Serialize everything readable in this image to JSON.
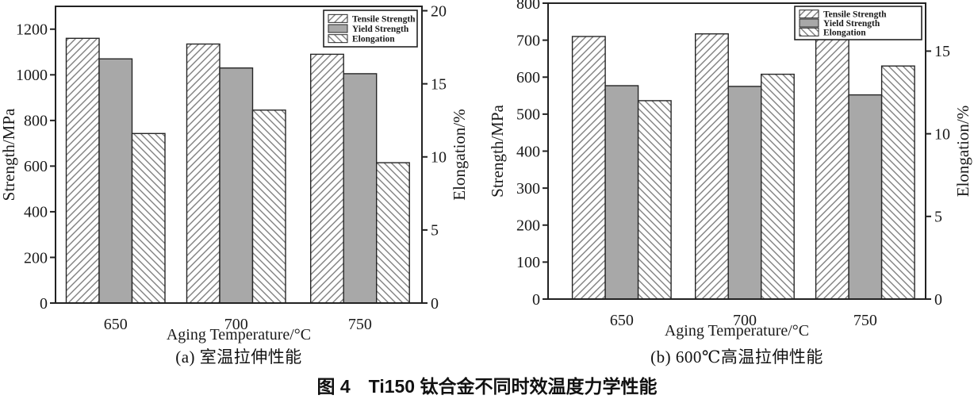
{
  "figure": {
    "caption": "图 4　Ti150 钛合金不同时效温度力学性能",
    "background": "#ffffff"
  },
  "colors": {
    "bar_gray": "#a8a8a8",
    "hatch_line": "#7f7f7f",
    "bar_outline": "#262626",
    "frame": "#222222",
    "text": "#1a1a1a"
  },
  "chart_data": [
    {
      "type": "bar",
      "panel_label": "a",
      "caption": "(a) 室温拉伸性能",
      "x_axis": {
        "label": "Aging Temperature/°C",
        "categories": [
          "650",
          "700",
          "750"
        ]
      },
      "left_axis": {
        "label": "Strength/MPa",
        "ticks": [
          0,
          200,
          400,
          600,
          800,
          1000,
          1200
        ],
        "max": 1300
      },
      "right_axis": {
        "label": "Elongation/%",
        "ticks": [
          0,
          5,
          10,
          15,
          20
        ],
        "max": 20.3
      },
      "legend": {
        "position": "top-right",
        "entries": [
          "Tensile Strength",
          "Yield Strength",
          "Elongation"
        ]
      },
      "series": [
        {
          "name": "Tensile Strength",
          "axis": "left",
          "pattern": "diagonal-forward",
          "values": [
            1160,
            1135,
            1090
          ]
        },
        {
          "name": "Yield Strength",
          "axis": "left",
          "pattern": "solid-gray",
          "values": [
            1070,
            1030,
            1005
          ]
        },
        {
          "name": "Elongation",
          "axis": "right",
          "pattern": "diagonal-backward",
          "values": [
            11.6,
            13.2,
            9.6
          ]
        }
      ]
    },
    {
      "type": "bar",
      "panel_label": "b",
      "caption": "(b) 600℃高温拉伸性能",
      "x_axis": {
        "label": "Aging Temperature/°C",
        "categories": [
          "650",
          "700",
          "750"
        ]
      },
      "left_axis": {
        "label": "Strength/MPa",
        "ticks": [
          0,
          100,
          200,
          300,
          400,
          500,
          600,
          700,
          800
        ],
        "max": 800
      },
      "right_axis": {
        "label": "Elongation/%",
        "ticks": [
          0,
          5,
          10,
          15
        ],
        "max": 17.9
      },
      "legend": {
        "position": "top-right",
        "entries": [
          "Tensile Strength",
          "Yield Strength",
          "Elongation"
        ]
      },
      "series": [
        {
          "name": "Tensile Strength",
          "axis": "left",
          "pattern": "diagonal-forward",
          "values": [
            710,
            717,
            703
          ]
        },
        {
          "name": "Yield Strength",
          "axis": "left",
          "pattern": "solid-gray",
          "values": [
            577,
            575,
            552
          ]
        },
        {
          "name": "Elongation",
          "axis": "right",
          "pattern": "diagonal-backward",
          "values": [
            12.0,
            13.6,
            14.1
          ]
        }
      ]
    }
  ]
}
